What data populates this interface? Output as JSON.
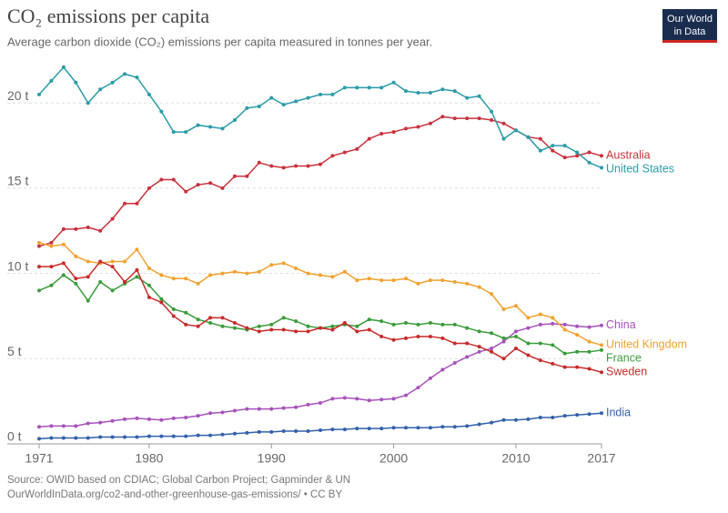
{
  "chart_data": {
    "type": "line",
    "title": "CO₂ emissions per capita",
    "subtitle": "Average carbon dioxide (CO₂) emissions per capita measured in tonnes per year.",
    "logo_lines": [
      "Our World",
      "in Data"
    ],
    "source": "Source: OWID based on CDIAC; Global Carbon Project; Gapminder & UN",
    "url": "OurWorldInData.org/co2-and-other-greenhouse-gas-emissions/ • CC BY",
    "x": [
      1971,
      1972,
      1973,
      1974,
      1975,
      1976,
      1977,
      1978,
      1979,
      1980,
      1981,
      1982,
      1983,
      1984,
      1985,
      1986,
      1987,
      1988,
      1989,
      1990,
      1991,
      1992,
      1993,
      1994,
      1995,
      1996,
      1997,
      1998,
      1999,
      2000,
      2001,
      2002,
      2003,
      2004,
      2005,
      2006,
      2007,
      2008,
      2009,
      2010,
      2011,
      2012,
      2013,
      2014,
      2015,
      2016,
      2017
    ],
    "xlim": [
      1971,
      2017
    ],
    "xticks": [
      1971,
      1980,
      1990,
      2000,
      2010,
      2017
    ],
    "ylim": [
      0,
      23
    ],
    "yticks": [
      {
        "value": 0,
        "label": "0 t"
      },
      {
        "value": 5,
        "label": "5 t"
      },
      {
        "value": 10,
        "label": "10 t"
      },
      {
        "value": 15,
        "label": "15 t"
      },
      {
        "value": 20,
        "label": "20 t"
      }
    ],
    "grid": true,
    "series": [
      {
        "name": "Australia",
        "color": "#c8313c",
        "values": [
          11.6,
          11.8,
          12.6,
          12.6,
          12.7,
          12.5,
          13.2,
          14.1,
          14.1,
          15.0,
          15.5,
          15.5,
          14.8,
          15.2,
          15.3,
          15.0,
          15.7,
          15.7,
          16.5,
          16.3,
          16.2,
          16.3,
          16.3,
          16.4,
          16.9,
          17.1,
          17.3,
          17.9,
          18.2,
          18.3,
          18.5,
          18.6,
          18.8,
          19.2,
          19.1,
          19.1,
          19.1,
          19.0,
          18.8,
          18.4,
          18.0,
          17.9,
          17.2,
          16.8,
          16.9,
          17.1,
          16.9
        ]
      },
      {
        "name": "United States",
        "color": "#2a9ba6",
        "values": [
          20.5,
          21.3,
          22.1,
          21.2,
          20.0,
          20.8,
          21.2,
          21.7,
          21.5,
          20.5,
          19.5,
          18.3,
          18.3,
          18.7,
          18.6,
          18.5,
          19.0,
          19.7,
          19.8,
          20.3,
          19.9,
          20.1,
          20.3,
          20.5,
          20.5,
          20.9,
          20.9,
          20.9,
          20.9,
          21.2,
          20.7,
          20.6,
          20.6,
          20.8,
          20.7,
          20.3,
          20.4,
          19.5,
          17.9,
          18.4,
          18.0,
          17.2,
          17.5,
          17.5,
          17.1,
          16.5,
          16.2
        ]
      },
      {
        "name": "China",
        "color": "#a652ba",
        "values": [
          1.0,
          1.05,
          1.05,
          1.05,
          1.2,
          1.25,
          1.35,
          1.45,
          1.5,
          1.45,
          1.4,
          1.5,
          1.55,
          1.65,
          1.8,
          1.85,
          1.95,
          2.05,
          2.05,
          2.05,
          2.1,
          2.15,
          2.3,
          2.4,
          2.65,
          2.7,
          2.65,
          2.55,
          2.6,
          2.65,
          2.85,
          3.3,
          3.85,
          4.35,
          4.75,
          5.1,
          5.4,
          5.6,
          6.0,
          6.6,
          6.8,
          7.0,
          7.05,
          7.0,
          6.9,
          6.85,
          6.95
        ]
      },
      {
        "name": "United Kingdom",
        "color": "#f1a12e",
        "values": [
          11.8,
          11.6,
          11.7,
          11.0,
          10.7,
          10.6,
          10.7,
          10.7,
          11.4,
          10.3,
          9.9,
          9.7,
          9.7,
          9.4,
          9.9,
          10.0,
          10.1,
          10.0,
          10.1,
          10.5,
          10.6,
          10.3,
          10.0,
          9.9,
          9.8,
          10.1,
          9.6,
          9.7,
          9.6,
          9.6,
          9.7,
          9.4,
          9.6,
          9.6,
          9.5,
          9.4,
          9.2,
          8.8,
          7.9,
          8.1,
          7.4,
          7.6,
          7.4,
          6.7,
          6.4,
          6.0,
          5.8
        ]
      },
      {
        "name": "France",
        "color": "#3a9b3a",
        "values": [
          9.0,
          9.3,
          9.9,
          9.4,
          8.4,
          9.5,
          9.0,
          9.4,
          9.8,
          9.3,
          8.5,
          7.9,
          7.7,
          7.3,
          7.1,
          6.9,
          6.8,
          6.7,
          6.9,
          7.0,
          7.4,
          7.2,
          6.9,
          6.8,
          6.9,
          7.0,
          6.9,
          7.3,
          7.2,
          7.0,
          7.1,
          7.0,
          7.1,
          7.0,
          7.0,
          6.8,
          6.6,
          6.5,
          6.2,
          6.3,
          5.9,
          5.9,
          5.8,
          5.3,
          5.4,
          5.4,
          5.5
        ]
      },
      {
        "name": "Sweden",
        "color": "#c62a2a",
        "values": [
          10.4,
          10.4,
          10.6,
          9.7,
          9.8,
          10.7,
          10.4,
          9.5,
          10.2,
          8.6,
          8.3,
          7.5,
          7.0,
          6.9,
          7.4,
          7.4,
          7.1,
          6.8,
          6.6,
          6.7,
          6.7,
          6.6,
          6.6,
          6.8,
          6.7,
          7.1,
          6.6,
          6.7,
          6.3,
          6.1,
          6.2,
          6.3,
          6.3,
          6.2,
          5.9,
          5.9,
          5.7,
          5.4,
          5.0,
          5.6,
          5.2,
          4.9,
          4.7,
          4.5,
          4.5,
          4.4,
          4.2
        ]
      },
      {
        "name": "India",
        "color": "#3360a9",
        "values": [
          0.3,
          0.35,
          0.35,
          0.35,
          0.35,
          0.4,
          0.4,
          0.4,
          0.4,
          0.45,
          0.45,
          0.45,
          0.45,
          0.5,
          0.5,
          0.55,
          0.6,
          0.65,
          0.7,
          0.7,
          0.75,
          0.75,
          0.75,
          0.8,
          0.85,
          0.85,
          0.9,
          0.9,
          0.9,
          0.95,
          0.95,
          0.95,
          0.95,
          1.0,
          1.0,
          1.05,
          1.15,
          1.25,
          1.4,
          1.4,
          1.45,
          1.55,
          1.55,
          1.65,
          1.7,
          1.75,
          1.8
        ]
      }
    ]
  }
}
